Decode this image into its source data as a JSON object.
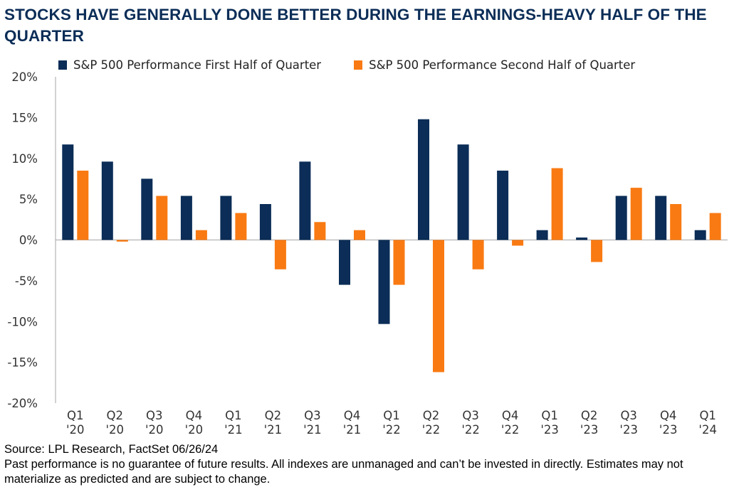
{
  "title": "STOCKS HAVE GENERALLY DONE BETTER DURING THE EARNINGS-HEAVY HALF OF THE QUARTER",
  "source": "Source: LPL Research, FactSet 06/26/24",
  "disclaimer": "Past performance is no guarantee of future results. All indexes are unmanaged and can’t be invested in directly. Estimates may not materialize as predicted and are subject to change.",
  "colors": {
    "first_half": "#0b2d57",
    "second_half": "#f97a12",
    "axis": "#a6a6a6",
    "text": "#333333"
  },
  "chart_data": {
    "type": "bar",
    "title": "STOCKS HAVE GENERALLY DONE BETTER DURING THE EARNINGS-HEAVY HALF OF THE QUARTER",
    "xlabel": "",
    "ylabel": "",
    "ylim": [
      -20,
      20
    ],
    "yticks": [
      20,
      15,
      10,
      5,
      0,
      -5,
      -10,
      -15,
      -20
    ],
    "ytick_labels": [
      "20%",
      "15%",
      "10%",
      "5%",
      "0%",
      "-5%",
      "-10%",
      "-15%",
      "-20%"
    ],
    "grid": false,
    "legend_position": "top-left",
    "categories": [
      [
        "Q1",
        "'20"
      ],
      [
        "Q2",
        "'20"
      ],
      [
        "Q3",
        "'20"
      ],
      [
        "Q4",
        "'20"
      ],
      [
        "Q1",
        "'21"
      ],
      [
        "Q2",
        "'21"
      ],
      [
        "Q3",
        "'21"
      ],
      [
        "Q4",
        "'21"
      ],
      [
        "Q1",
        "'22"
      ],
      [
        "Q2",
        "'22"
      ],
      [
        "Q3",
        "'22"
      ],
      [
        "Q4",
        "'22"
      ],
      [
        "Q1",
        "'23"
      ],
      [
        "Q2",
        "'23"
      ],
      [
        "Q3",
        "'23"
      ],
      [
        "Q4",
        "'23"
      ],
      [
        "Q1",
        "'24"
      ]
    ],
    "series": [
      {
        "name": "S&P 500 Performance First Half of Quarter",
        "values": [
          11.7,
          9.6,
          7.5,
          5.4,
          5.4,
          4.4,
          9.6,
          -5.5,
          -10.3,
          14.8,
          11.7,
          8.5,
          1.2,
          0.3,
          5.4,
          5.4,
          1.2
        ]
      },
      {
        "name": "S&P 500 Performance Second Half of Quarter",
        "values": [
          8.5,
          -0.2,
          5.4,
          1.2,
          3.3,
          -3.6,
          2.2,
          1.2,
          -5.5,
          -16.2,
          -3.6,
          -0.7,
          8.8,
          -2.7,
          6.4,
          4.4,
          3.3
        ]
      }
    ]
  }
}
